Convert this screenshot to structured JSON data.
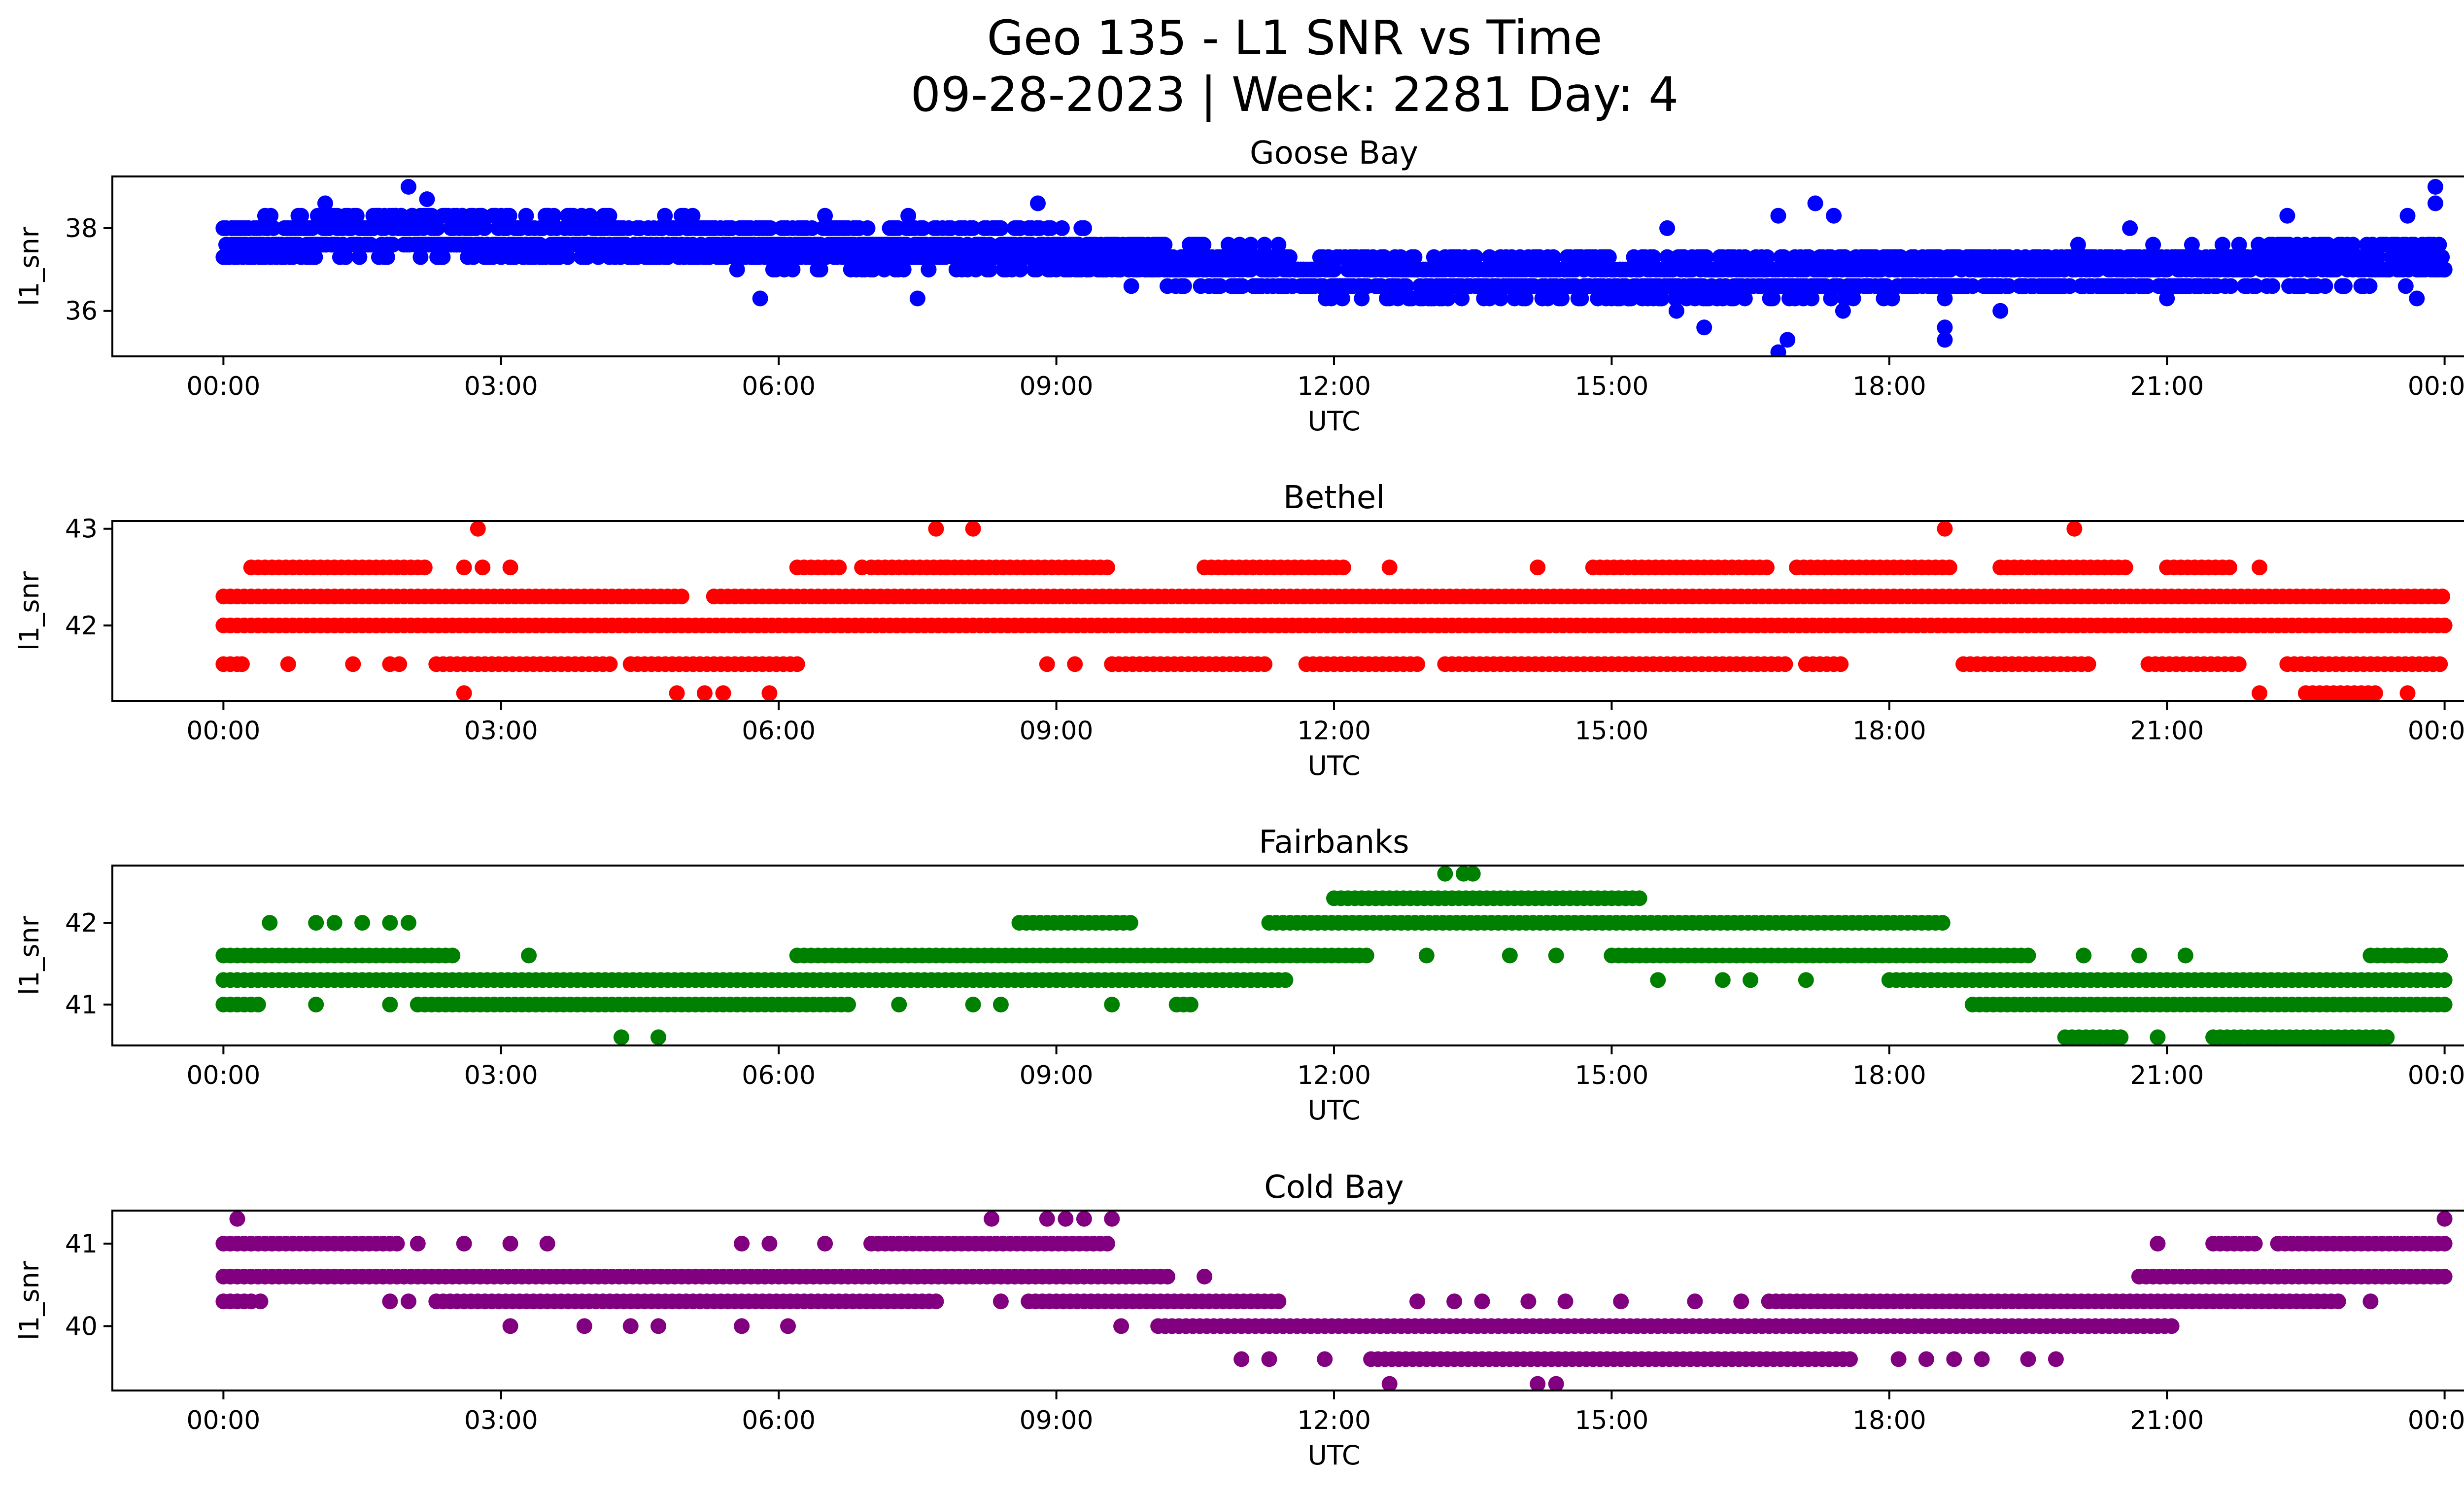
{
  "figure": {
    "title_line1": "Geo 135 - L1 SNR vs Time",
    "title_line2": "09-28-2023 | Week: 2281 Day: 4"
  },
  "chart_data": [
    {
      "type": "scatter",
      "title": "Goose Bay",
      "xlabel": "UTC",
      "ylabel": "l1_snr",
      "color": "#0000ff",
      "x_unit": "hours UTC",
      "xlim": [
        -1.2,
        25.2
      ],
      "ylim": [
        34.9,
        39.25
      ],
      "xticks": [
        "00:00",
        "03:00",
        "06:00",
        "09:00",
        "12:00",
        "15:00",
        "18:00",
        "21:00",
        "00:00"
      ],
      "yticks": [
        36,
        38
      ],
      "profile": [
        [
          0,
          37.6
        ],
        [
          2,
          37.9
        ],
        [
          3,
          37.8
        ],
        [
          6,
          37.6
        ],
        [
          9,
          37.5
        ],
        [
          10,
          37.2
        ],
        [
          12,
          36.9
        ],
        [
          15,
          36.8
        ],
        [
          18,
          36.9
        ],
        [
          21,
          37.0
        ],
        [
          24,
          37.3
        ]
      ],
      "band": 0.5,
      "outliers_high": [
        [
          1.1,
          38.6
        ],
        [
          2.0,
          39.0
        ],
        [
          2.2,
          38.7
        ],
        [
          6.5,
          38.3
        ],
        [
          7.4,
          38.3
        ],
        [
          8.8,
          38.6
        ],
        [
          15.6,
          38.0
        ],
        [
          16.8,
          38.3
        ],
        [
          17.2,
          38.6
        ],
        [
          17.4,
          38.3
        ],
        [
          20.6,
          38.0
        ],
        [
          22.3,
          38.3
        ],
        [
          23.6,
          38.3
        ],
        [
          23.9,
          39.0
        ],
        [
          23.9,
          38.6
        ]
      ],
      "outliers_low": [
        [
          5.8,
          36.3
        ],
        [
          7.5,
          36.3
        ],
        [
          15.7,
          36.0
        ],
        [
          16.0,
          35.6
        ],
        [
          16.8,
          35.0
        ],
        [
          16.9,
          35.3
        ],
        [
          17.5,
          36.0
        ],
        [
          18.6,
          35.3
        ],
        [
          18.6,
          35.6
        ],
        [
          19.2,
          36.0
        ],
        [
          21.0,
          36.3
        ],
        [
          23.7,
          36.3
        ]
      ]
    },
    {
      "type": "scatter",
      "title": "Bethel",
      "xlabel": "UTC",
      "ylabel": "l1_snr",
      "color": "#ff0000",
      "x_unit": "hours UTC",
      "xlim": [
        -1.2,
        25.2
      ],
      "ylim": [
        41.22,
        43.08
      ],
      "xticks": [
        "00:00",
        "03:00",
        "06:00",
        "09:00",
        "12:00",
        "15:00",
        "18:00",
        "21:00",
        "00:00"
      ],
      "yticks": [
        42,
        43
      ],
      "levels": [
        {
          "y": 42.3,
          "segments": [
            [
              0,
              5
            ],
            [
              5.3,
              24
            ]
          ]
        },
        {
          "y": 42.0,
          "segments": [
            [
              0,
              24
            ]
          ]
        },
        {
          "y": 42.6,
          "segments": [
            [
              0.3,
              2.2
            ],
            [
              6.2,
              6.7
            ],
            [
              7.0,
              9.6
            ],
            [
              10.6,
              12.1
            ],
            [
              14.8,
              16.7
            ],
            [
              17.0,
              18.7
            ],
            [
              19.2,
              20.6
            ],
            [
              21.0,
              21.7
            ]
          ]
        },
        {
          "y": 41.6,
          "segments": [
            [
              0,
              0.2
            ],
            [
              2.3,
              4.2
            ],
            [
              4.4,
              6.2
            ],
            [
              9.6,
              11.3
            ],
            [
              11.7,
              12.9
            ],
            [
              13.2,
              16.9
            ],
            [
              17.1,
              17.5
            ],
            [
              18.8,
              20.2
            ],
            [
              20.8,
              21.8
            ],
            [
              22.3,
              24
            ]
          ]
        },
        {
          "y": 41.3,
          "segments": [
            [
              22.5,
              23.3
            ]
          ]
        }
      ],
      "scatter_points": [
        [
          0.2,
          41.6
        ],
        [
          0.7,
          41.6
        ],
        [
          1.4,
          41.6
        ],
        [
          1.8,
          41.6
        ],
        [
          1.9,
          41.6
        ],
        [
          2.6,
          42.6
        ],
        [
          2.8,
          42.6
        ],
        [
          3.1,
          42.6
        ],
        [
          6.9,
          42.6
        ],
        [
          7.8,
          42.6
        ],
        [
          8.9,
          41.6
        ],
        [
          9.2,
          41.6
        ],
        [
          12.6,
          42.6
        ],
        [
          14.2,
          42.6
        ],
        [
          20.8,
          41.6
        ],
        [
          22.0,
          42.6
        ],
        [
          22.7,
          42.3
        ],
        [
          2.6,
          41.3
        ],
        [
          4.9,
          41.3
        ],
        [
          5.2,
          41.3
        ],
        [
          5.4,
          41.3
        ],
        [
          5.9,
          41.3
        ],
        [
          22.0,
          41.3
        ],
        [
          23.6,
          41.3
        ]
      ],
      "outliers_high": [
        [
          2.75,
          43.0
        ],
        [
          7.7,
          43.0
        ],
        [
          8.1,
          43.0
        ],
        [
          18.6,
          43.0
        ],
        [
          20.0,
          43.0
        ]
      ]
    },
    {
      "type": "scatter",
      "title": "Fairbanks",
      "xlabel": "UTC",
      "ylabel": "l1_snr",
      "color": "#008000",
      "x_unit": "hours UTC",
      "xlim": [
        -1.2,
        25.2
      ],
      "ylim": [
        40.5,
        42.7
      ],
      "xticks": [
        "00:00",
        "03:00",
        "06:00",
        "09:00",
        "12:00",
        "15:00",
        "18:00",
        "21:00",
        "00:00"
      ],
      "yticks": [
        41,
        42
      ],
      "levels": [
        {
          "y": 41.3,
          "segments": [
            [
              0,
              11.5
            ],
            [
              18.0,
              24
            ]
          ]
        },
        {
          "y": 41.6,
          "segments": [
            [
              0,
              2.5
            ],
            [
              6.2,
              12.4
            ],
            [
              15.0,
              19.5
            ],
            [
              23.2,
              24
            ]
          ]
        },
        {
          "y": 41.0,
          "segments": [
            [
              0,
              0.4
            ],
            [
              2.1,
              6.8
            ],
            [
              10.3,
              10.5
            ],
            [
              18.9,
              24
            ]
          ]
        },
        {
          "y": 42.0,
          "segments": [
            [
              11.3,
              18.6
            ],
            [
              8.6,
              9.8
            ]
          ]
        },
        {
          "y": 42.3,
          "segments": [
            [
              12.0,
              15.3
            ]
          ]
        },
        {
          "y": 40.6,
          "segments": [
            [
              19.9,
              20.5
            ],
            [
              21.5,
              23.4
            ]
          ]
        }
      ],
      "scatter_points": [
        [
          0.5,
          42.0
        ],
        [
          1.0,
          42.0
        ],
        [
          1.2,
          42.0
        ],
        [
          1.5,
          42.0
        ],
        [
          1.8,
          42.0
        ],
        [
          2.0,
          42.0
        ],
        [
          3.3,
          41.6
        ],
        [
          13.0,
          41.6
        ],
        [
          13.9,
          41.6
        ],
        [
          14.4,
          41.6
        ],
        [
          20.1,
          41.6
        ],
        [
          20.7,
          41.6
        ],
        [
          21.2,
          41.6
        ],
        [
          23.6,
          41.6
        ],
        [
          15.5,
          41.3
        ],
        [
          16.2,
          41.3
        ],
        [
          16.5,
          41.3
        ],
        [
          17.1,
          41.3
        ],
        [
          1.0,
          41.0
        ],
        [
          1.8,
          41.0
        ],
        [
          7.3,
          41.0
        ],
        [
          8.1,
          41.0
        ],
        [
          8.4,
          41.0
        ],
        [
          9.6,
          41.0
        ],
        [
          4.3,
          40.6
        ],
        [
          4.7,
          40.6
        ],
        [
          20.9,
          40.6
        ]
      ],
      "outliers_high": [
        [
          13.2,
          42.6
        ],
        [
          13.4,
          42.6
        ],
        [
          13.5,
          42.6
        ]
      ]
    },
    {
      "type": "scatter",
      "title": "Cold Bay",
      "xlabel": "UTC",
      "ylabel": "l1_snr",
      "color": "#800080",
      "x_unit": "hours UTC",
      "xlim": [
        -1.2,
        25.2
      ],
      "ylim": [
        39.22,
        41.4
      ],
      "xticks": [
        "00:00",
        "03:00",
        "06:00",
        "09:00",
        "12:00",
        "15:00",
        "18:00",
        "21:00",
        "00:00"
      ],
      "yticks": [
        40,
        41
      ],
      "levels": [
        {
          "y": 41.0,
          "segments": [
            [
              0,
              1.9
            ],
            [
              7.0,
              9.6
            ],
            [
              21.5,
              22.0
            ],
            [
              22.2,
              24
            ]
          ]
        },
        {
          "y": 40.6,
          "segments": [
            [
              0,
              10.2
            ],
            [
              20.7,
              24
            ]
          ]
        },
        {
          "y": 40.3,
          "segments": [
            [
              0,
              0.3
            ],
            [
              2.3,
              7.7
            ],
            [
              8.7,
              11.4
            ],
            [
              16.7,
              22.9
            ]
          ]
        },
        {
          "y": 40.0,
          "segments": [
            [
              10.1,
              21.1
            ]
          ]
        },
        {
          "y": 39.6,
          "segments": [
            [
              12.4,
              17.6
            ]
          ]
        }
      ],
      "scatter_points": [
        [
          2.1,
          41.0
        ],
        [
          2.6,
          41.0
        ],
        [
          3.1,
          41.0
        ],
        [
          3.5,
          41.0
        ],
        [
          5.6,
          41.0
        ],
        [
          5.9,
          41.0
        ],
        [
          6.5,
          41.0
        ],
        [
          20.9,
          41.0
        ],
        [
          0.4,
          40.3
        ],
        [
          1.8,
          40.3
        ],
        [
          2.0,
          40.3
        ],
        [
          8.4,
          40.3
        ],
        [
          12.9,
          40.3
        ],
        [
          13.3,
          40.3
        ],
        [
          13.6,
          40.3
        ],
        [
          14.1,
          40.3
        ],
        [
          14.5,
          40.3
        ],
        [
          15.1,
          40.3
        ],
        [
          15.9,
          40.3
        ],
        [
          16.4,
          40.3
        ],
        [
          23.2,
          40.3
        ],
        [
          10.6,
          40.6
        ],
        [
          3.1,
          40.0
        ],
        [
          3.9,
          40.0
        ],
        [
          4.4,
          40.0
        ],
        [
          4.7,
          40.0
        ],
        [
          5.6,
          40.0
        ],
        [
          6.1,
          40.0
        ],
        [
          9.7,
          40.0
        ],
        [
          11.0,
          39.6
        ],
        [
          11.3,
          39.6
        ],
        [
          11.9,
          39.6
        ],
        [
          18.1,
          39.6
        ],
        [
          18.4,
          39.6
        ],
        [
          18.7,
          39.6
        ],
        [
          19.0,
          39.6
        ],
        [
          19.5,
          39.6
        ],
        [
          19.8,
          39.6
        ]
      ],
      "outliers_high": [
        [
          0.15,
          41.3
        ],
        [
          8.3,
          41.3
        ],
        [
          8.9,
          41.3
        ],
        [
          9.1,
          41.3
        ],
        [
          9.3,
          41.3
        ],
        [
          9.6,
          41.3
        ],
        [
          24.0,
          41.3
        ]
      ],
      "outliers_low": [
        [
          12.6,
          39.3
        ],
        [
          14.2,
          39.3
        ],
        [
          14.4,
          39.3
        ]
      ]
    }
  ]
}
